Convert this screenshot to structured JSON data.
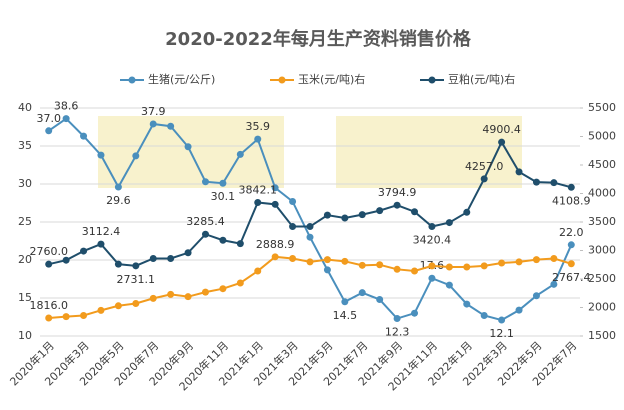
{
  "chart_data": {
    "type": "line",
    "title": "2020-2022年每月生产资料销售价格",
    "categories": [
      "2020年1月",
      null,
      "2020年3月",
      null,
      "2020年5月",
      null,
      "2020年7月",
      null,
      "2020年9月",
      null,
      "2020年11月",
      null,
      "2021年1月",
      null,
      "2021年3月",
      null,
      "2021年5月",
      null,
      "2021年7月",
      null,
      "2021年9月",
      null,
      "2021年11月",
      null,
      "2022年1月",
      null,
      "2022年3月",
      null,
      "2022年5月",
      null,
      "2022年7月"
    ],
    "ylim": [
      10,
      40
    ],
    "yticks": [
      10,
      15,
      20,
      25,
      30,
      35,
      40
    ],
    "y2lim": [
      1500,
      5500
    ],
    "y2ticks": [
      1500,
      2000,
      2500,
      3000,
      3500,
      4000,
      4500,
      5000,
      5500
    ],
    "grid": true,
    "legend": "top",
    "series": [
      {
        "name": "生猪(元/公斤)",
        "color": "#4a8fbd",
        "axis": "y",
        "values": [
          37.0,
          38.6,
          36.3,
          33.8,
          29.6,
          33.7,
          37.9,
          37.6,
          34.9,
          30.3,
          30.1,
          33.9,
          35.9,
          29.5,
          27.7,
          23.0,
          18.7,
          14.5,
          15.7,
          14.8,
          12.3,
          13.0,
          17.6,
          16.7,
          14.2,
          12.7,
          12.1,
          13.4,
          15.3,
          16.8,
          22.0
        ],
        "value_labels": [
          "37.0",
          "38.6",
          null,
          null,
          "29.6",
          null,
          "37.9",
          null,
          null,
          null,
          "30.1",
          null,
          "35.9",
          null,
          null,
          null,
          null,
          "14.5",
          null,
          null,
          "12.3",
          null,
          "17.6",
          null,
          null,
          null,
          "12.1",
          null,
          null,
          null,
          "22.0"
        ]
      },
      {
        "name": "玉米(元/吨)右",
        "color": "#f29b1d",
        "axis": "y2",
        "values": [
          1816.0,
          1840,
          1860,
          1950,
          2030,
          2070,
          2160,
          2230,
          2190,
          2270,
          2330,
          2430,
          2640,
          2888.9,
          2860,
          2800,
          2840,
          2810,
          2740,
          2750,
          2670,
          2640,
          2730,
          2710,
          2710,
          2730,
          2780,
          2800,
          2840,
          2860,
          2767.4
        ],
        "value_labels": [
          "1816.0",
          null,
          null,
          null,
          null,
          null,
          null,
          null,
          null,
          null,
          null,
          null,
          null,
          "2888.9",
          null,
          null,
          null,
          null,
          null,
          null,
          null,
          null,
          null,
          null,
          null,
          null,
          null,
          null,
          null,
          null,
          "2767.4"
        ]
      },
      {
        "name": "豆粕(元/吨)右",
        "color": "#1f4e6b",
        "axis": "y2",
        "values": [
          2760.0,
          2830,
          2990,
          3112.4,
          2760,
          2731.1,
          2860,
          2860,
          2960,
          3285.4,
          3180,
          3120,
          3842.1,
          3810,
          3420,
          3420,
          3620,
          3570,
          3630,
          3700,
          3794.9,
          3680,
          3420.4,
          3490,
          3670,
          4257.0,
          4900.4,
          4380,
          4200,
          4190,
          4108.9
        ],
        "value_labels": [
          "2760.0",
          null,
          null,
          "3112.4",
          null,
          "2731.1",
          null,
          null,
          null,
          "3285.4",
          null,
          null,
          "3842.1",
          null,
          null,
          null,
          null,
          null,
          null,
          null,
          "3794.9",
          null,
          "3420.4",
          null,
          null,
          "4257.0",
          "4900.4",
          null,
          null,
          null,
          "4108.9"
        ]
      }
    ]
  }
}
